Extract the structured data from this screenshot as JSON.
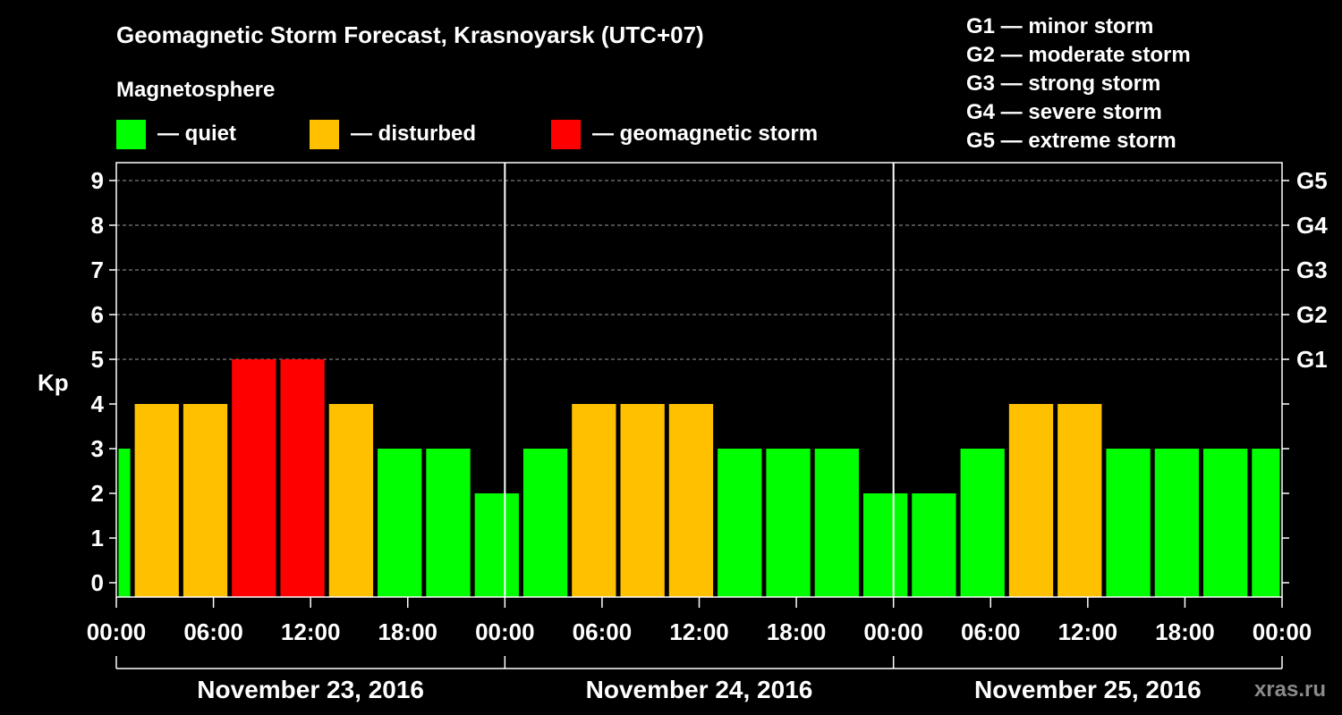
{
  "chart_data": {
    "type": "bar",
    "title": "Geomagnetic Storm Forecast, Krasnoyarsk (UTC+07)",
    "legend_title": "Magnetosphere",
    "legend": [
      {
        "label": "— quiet",
        "color": "#00ff00"
      },
      {
        "label": "— disturbed",
        "color": "#ffc000"
      },
      {
        "label": "— geomagnetic storm",
        "color": "#ff0000"
      }
    ],
    "g_scale": [
      "G1 — minor storm",
      "G2 — moderate storm",
      "G3 — strong storm",
      "G4 — severe storm",
      "G5 — extreme storm"
    ],
    "ylabel": "Kp",
    "ylim": [
      0,
      9
    ],
    "yticks": [
      "0",
      "1",
      "2",
      "3",
      "4",
      "5",
      "6",
      "7",
      "8",
      "9"
    ],
    "right_ticks": [
      {
        "kp": 5,
        "label": "G1"
      },
      {
        "kp": 6,
        "label": "G2"
      },
      {
        "kp": 7,
        "label": "G3"
      },
      {
        "kp": 8,
        "label": "G4"
      },
      {
        "kp": 9,
        "label": "G5"
      }
    ],
    "grid_levels": [
      5,
      6,
      7,
      8,
      9
    ],
    "x_hours_range": [
      0,
      72
    ],
    "xticks": [
      {
        "hour": 0,
        "label": "00:00"
      },
      {
        "hour": 6,
        "label": "06:00"
      },
      {
        "hour": 12,
        "label": "12:00"
      },
      {
        "hour": 18,
        "label": "18:00"
      },
      {
        "hour": 24,
        "label": "00:00"
      },
      {
        "hour": 30,
        "label": "06:00"
      },
      {
        "hour": 36,
        "label": "12:00"
      },
      {
        "hour": 42,
        "label": "18:00"
      },
      {
        "hour": 48,
        "label": "00:00"
      },
      {
        "hour": 54,
        "label": "06:00"
      },
      {
        "hour": 60,
        "label": "12:00"
      },
      {
        "hour": 66,
        "label": "18:00"
      },
      {
        "hour": 72,
        "label": "00:00"
      }
    ],
    "days": [
      {
        "label": "November 23, 2016",
        "start_hour": 0,
        "end_hour": 24
      },
      {
        "label": "November 24, 2016",
        "start_hour": 24,
        "end_hour": 48
      },
      {
        "label": "November 25, 2016",
        "start_hour": 48,
        "end_hour": 72
      }
    ],
    "day_dividers_hours": [
      24,
      48
    ],
    "bars": [
      {
        "start_hour": 0,
        "end_hour": 1,
        "kp": 3,
        "level": "quiet"
      },
      {
        "start_hour": 1,
        "end_hour": 4,
        "kp": 4,
        "level": "disturbed"
      },
      {
        "start_hour": 4,
        "end_hour": 7,
        "kp": 4,
        "level": "disturbed"
      },
      {
        "start_hour": 7,
        "end_hour": 10,
        "kp": 5,
        "level": "storm"
      },
      {
        "start_hour": 10,
        "end_hour": 13,
        "kp": 5,
        "level": "storm"
      },
      {
        "start_hour": 13,
        "end_hour": 16,
        "kp": 4,
        "level": "disturbed"
      },
      {
        "start_hour": 16,
        "end_hour": 19,
        "kp": 3,
        "level": "quiet"
      },
      {
        "start_hour": 19,
        "end_hour": 22,
        "kp": 3,
        "level": "quiet"
      },
      {
        "start_hour": 22,
        "end_hour": 25,
        "kp": 2,
        "level": "quiet"
      },
      {
        "start_hour": 25,
        "end_hour": 28,
        "kp": 3,
        "level": "quiet"
      },
      {
        "start_hour": 28,
        "end_hour": 31,
        "kp": 4,
        "level": "disturbed"
      },
      {
        "start_hour": 31,
        "end_hour": 34,
        "kp": 4,
        "level": "disturbed"
      },
      {
        "start_hour": 34,
        "end_hour": 37,
        "kp": 4,
        "level": "disturbed"
      },
      {
        "start_hour": 37,
        "end_hour": 40,
        "kp": 3,
        "level": "quiet"
      },
      {
        "start_hour": 40,
        "end_hour": 43,
        "kp": 3,
        "level": "quiet"
      },
      {
        "start_hour": 43,
        "end_hour": 46,
        "kp": 3,
        "level": "quiet"
      },
      {
        "start_hour": 46,
        "end_hour": 49,
        "kp": 2,
        "level": "quiet"
      },
      {
        "start_hour": 49,
        "end_hour": 52,
        "kp": 2,
        "level": "quiet"
      },
      {
        "start_hour": 52,
        "end_hour": 55,
        "kp": 3,
        "level": "quiet"
      },
      {
        "start_hour": 55,
        "end_hour": 58,
        "kp": 4,
        "level": "disturbed"
      },
      {
        "start_hour": 58,
        "end_hour": 61,
        "kp": 4,
        "level": "disturbed"
      },
      {
        "start_hour": 61,
        "end_hour": 64,
        "kp": 3,
        "level": "quiet"
      },
      {
        "start_hour": 64,
        "end_hour": 67,
        "kp": 3,
        "level": "quiet"
      },
      {
        "start_hour": 67,
        "end_hour": 70,
        "kp": 3,
        "level": "quiet"
      },
      {
        "start_hour": 70,
        "end_hour": 72,
        "kp": 3,
        "level": "quiet"
      }
    ],
    "level_colors": {
      "quiet": "#00ff00",
      "disturbed": "#ffc000",
      "storm": "#ff0000"
    },
    "watermark": "xras.ru"
  }
}
